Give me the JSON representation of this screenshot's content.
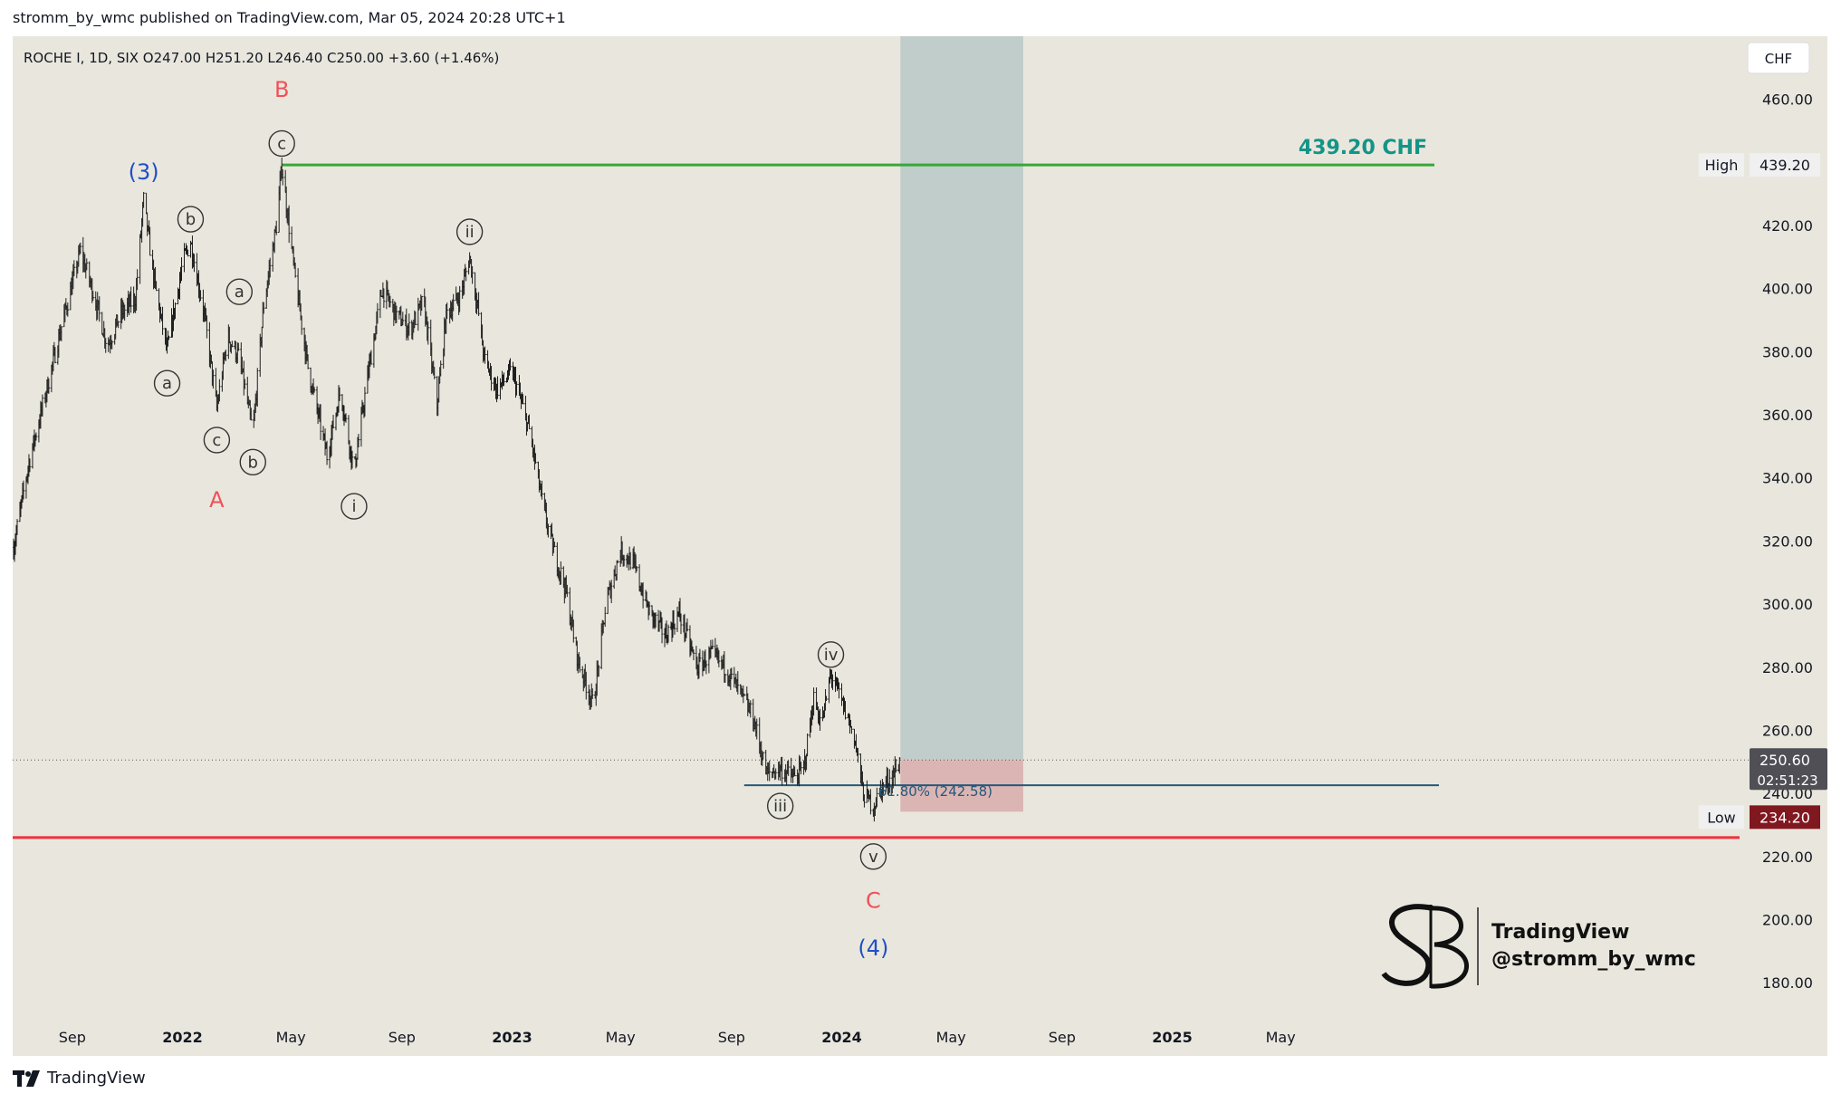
{
  "header": {
    "published_line": "stromm_by_wmc published on TradingView.com, Mar 05, 2024 20:28 UTC+1"
  },
  "footer": {
    "brand": "TradingView"
  },
  "watermark": {
    "line1": "TradingView",
    "line2": "@stromm_by_wmc"
  },
  "colors": {
    "background": "#e9e7dd",
    "candle": "#1e1e1e",
    "target_line": "#3aa53a",
    "support_line": "#f0303c",
    "fib_line": "#25587a",
    "blue_label": "#1f4fc8",
    "red_label": "#f0505a",
    "target_label": "#149488",
    "projection_zone": "#b9c8c8",
    "risk_zone": "#d9afaf"
  },
  "chart_data": {
    "type": "candlestick",
    "symbol_line": "ROCHE I, 1D, SIX  O247.00  H251.20  L246.40  C250.00  +3.60 (+1.46%)",
    "currency": "CHF",
    "y_axis": {
      "ticks": [
        "460.00",
        "440.00",
        "420.00",
        "400.00",
        "380.00",
        "360.00",
        "340.00",
        "320.00",
        "300.00",
        "280.00",
        "260.00",
        "240.00",
        "220.00",
        "200.00",
        "180.00"
      ],
      "tick_values": [
        460,
        440,
        420,
        400,
        380,
        360,
        340,
        320,
        300,
        280,
        260,
        240,
        220,
        200,
        180
      ],
      "ylim": [
        170,
        480
      ]
    },
    "x_axis": {
      "ticks": [
        "Sep",
        "2022",
        "May",
        "Sep",
        "2023",
        "May",
        "Sep",
        "2024",
        "May",
        "Sep",
        "2025",
        "May"
      ],
      "tick_dates": [
        "2021-09-01",
        "2022-01-01",
        "2022-05-01",
        "2022-09-01",
        "2023-01-01",
        "2023-05-01",
        "2023-09-01",
        "2024-01-01",
        "2024-05-01",
        "2024-09-01",
        "2025-01-01",
        "2025-05-01"
      ],
      "xlim": [
        "2021-06-27",
        "2025-06-30"
      ]
    },
    "price_path": [
      {
        "date": "2021-06-28",
        "close": 318
      },
      {
        "date": "2021-07-15",
        "close": 345
      },
      {
        "date": "2021-08-01",
        "close": 365
      },
      {
        "date": "2021-08-20",
        "close": 388
      },
      {
        "date": "2021-09-10",
        "close": 412
      },
      {
        "date": "2021-09-25",
        "close": 398
      },
      {
        "date": "2021-10-10",
        "close": 382
      },
      {
        "date": "2021-10-25",
        "close": 392
      },
      {
        "date": "2021-11-10",
        "close": 397
      },
      {
        "date": "2021-11-19",
        "close": 428
      },
      {
        "date": "2021-12-01",
        "close": 402
      },
      {
        "date": "2021-12-15",
        "close": 380
      },
      {
        "date": "2022-01-01",
        "close": 408
      },
      {
        "date": "2022-01-10",
        "close": 415
      },
      {
        "date": "2022-01-25",
        "close": 392
      },
      {
        "date": "2022-02-08",
        "close": 362
      },
      {
        "date": "2022-02-20",
        "close": 385
      },
      {
        "date": "2022-03-05",
        "close": 378
      },
      {
        "date": "2022-03-20",
        "close": 354
      },
      {
        "date": "2022-04-01",
        "close": 395
      },
      {
        "date": "2022-04-15",
        "close": 420
      },
      {
        "date": "2022-04-21",
        "close": 439
      },
      {
        "date": "2022-05-05",
        "close": 405
      },
      {
        "date": "2022-05-20",
        "close": 375
      },
      {
        "date": "2022-06-10",
        "close": 347
      },
      {
        "date": "2022-06-25",
        "close": 368
      },
      {
        "date": "2022-07-10",
        "close": 342
      },
      {
        "date": "2022-07-25",
        "close": 372
      },
      {
        "date": "2022-08-10",
        "close": 400
      },
      {
        "date": "2022-08-25",
        "close": 392
      },
      {
        "date": "2022-09-10",
        "close": 387
      },
      {
        "date": "2022-09-25",
        "close": 396
      },
      {
        "date": "2022-10-10",
        "close": 363
      },
      {
        "date": "2022-10-20",
        "close": 392
      },
      {
        "date": "2022-11-05",
        "close": 398
      },
      {
        "date": "2022-11-15",
        "close": 410
      },
      {
        "date": "2022-11-25",
        "close": 392
      },
      {
        "date": "2022-12-01",
        "close": 378
      },
      {
        "date": "2022-12-15",
        "close": 368
      },
      {
        "date": "2023-01-01",
        "close": 374
      },
      {
        "date": "2023-01-20",
        "close": 355
      },
      {
        "date": "2023-02-05",
        "close": 330
      },
      {
        "date": "2023-02-15",
        "close": 318
      },
      {
        "date": "2023-03-01",
        "close": 305
      },
      {
        "date": "2023-03-15",
        "close": 282
      },
      {
        "date": "2023-04-01",
        "close": 268
      },
      {
        "date": "2023-04-15",
        "close": 300
      },
      {
        "date": "2023-05-01",
        "close": 317
      },
      {
        "date": "2023-05-15",
        "close": 313
      },
      {
        "date": "2023-06-01",
        "close": 298
      },
      {
        "date": "2023-06-20",
        "close": 290
      },
      {
        "date": "2023-07-05",
        "close": 297
      },
      {
        "date": "2023-07-25",
        "close": 280
      },
      {
        "date": "2023-08-10",
        "close": 284
      },
      {
        "date": "2023-08-25",
        "close": 280
      },
      {
        "date": "2023-09-10",
        "close": 272
      },
      {
        "date": "2023-09-25",
        "close": 264
      },
      {
        "date": "2023-10-10",
        "close": 246
      },
      {
        "date": "2023-10-25",
        "close": 248
      },
      {
        "date": "2023-11-10",
        "close": 245
      },
      {
        "date": "2023-11-20",
        "close": 248
      },
      {
        "date": "2023-12-01",
        "close": 270
      },
      {
        "date": "2023-12-10",
        "close": 262
      },
      {
        "date": "2023-12-20",
        "close": 278
      },
      {
        "date": "2024-01-05",
        "close": 266
      },
      {
        "date": "2024-01-15",
        "close": 258
      },
      {
        "date": "2024-01-25",
        "close": 240
      },
      {
        "date": "2024-02-05",
        "close": 236
      },
      {
        "date": "2024-02-15",
        "close": 242
      },
      {
        "date": "2024-02-25",
        "close": 245
      },
      {
        "date": "2024-03-05",
        "close": 250
      }
    ],
    "horizontal_lines": [
      {
        "name": "target",
        "value": 439.2,
        "label": "439.20 CHF"
      },
      {
        "name": "support",
        "value": 226
      },
      {
        "name": "fib",
        "value": 242.58,
        "label": "61.80% (242.58)"
      },
      {
        "name": "last_price_dotted",
        "value": 250.6
      }
    ],
    "price_labels": [
      {
        "tag": "High",
        "value": "439.20"
      },
      {
        "tag": "",
        "value": "250.60",
        "sub": "02:51:23"
      },
      {
        "tag": "Low",
        "value": "234.20"
      }
    ],
    "wave_labels": [
      {
        "text": "(3)",
        "date": "2021-11-19",
        "price": 437,
        "style": "blue"
      },
      {
        "text": "B",
        "date": "2022-04-21",
        "price": 463,
        "style": "red"
      },
      {
        "text": "c",
        "date": "2022-04-21",
        "price": 446,
        "style": "circle"
      },
      {
        "text": "b",
        "date": "2022-01-10",
        "price": 422,
        "style": "circle"
      },
      {
        "text": "a",
        "date": "2022-03-05",
        "price": 399,
        "style": "circle"
      },
      {
        "text": "a",
        "date": "2021-12-15",
        "price": 370,
        "style": "circle"
      },
      {
        "text": "c",
        "date": "2022-02-08",
        "price": 352,
        "style": "circle"
      },
      {
        "text": "b",
        "date": "2022-03-20",
        "price": 345,
        "style": "circle"
      },
      {
        "text": "A",
        "date": "2022-02-08",
        "price": 333,
        "style": "red"
      },
      {
        "text": "i",
        "date": "2022-07-10",
        "price": 331,
        "style": "circle"
      },
      {
        "text": "ii",
        "date": "2022-11-15",
        "price": 418,
        "style": "circle"
      },
      {
        "text": "iii",
        "date": "2023-10-25",
        "price": 236,
        "style": "circle"
      },
      {
        "text": "iv",
        "date": "2023-12-20",
        "price": 284,
        "style": "circle"
      },
      {
        "text": "v",
        "date": "2024-02-05",
        "price": 220,
        "style": "circle"
      },
      {
        "text": "C",
        "date": "2024-02-05",
        "price": 206,
        "style": "red"
      },
      {
        "text": "(4)",
        "date": "2024-02-05",
        "price": 191,
        "style": "blue"
      }
    ],
    "zones": [
      {
        "name": "projection",
        "from": "2024-03-06",
        "to": "2024-07-20",
        "low": 250.6,
        "high": 480
      },
      {
        "name": "risk",
        "from": "2024-03-06",
        "to": "2024-07-20",
        "low": 234.2,
        "high": 250.6
      }
    ]
  }
}
